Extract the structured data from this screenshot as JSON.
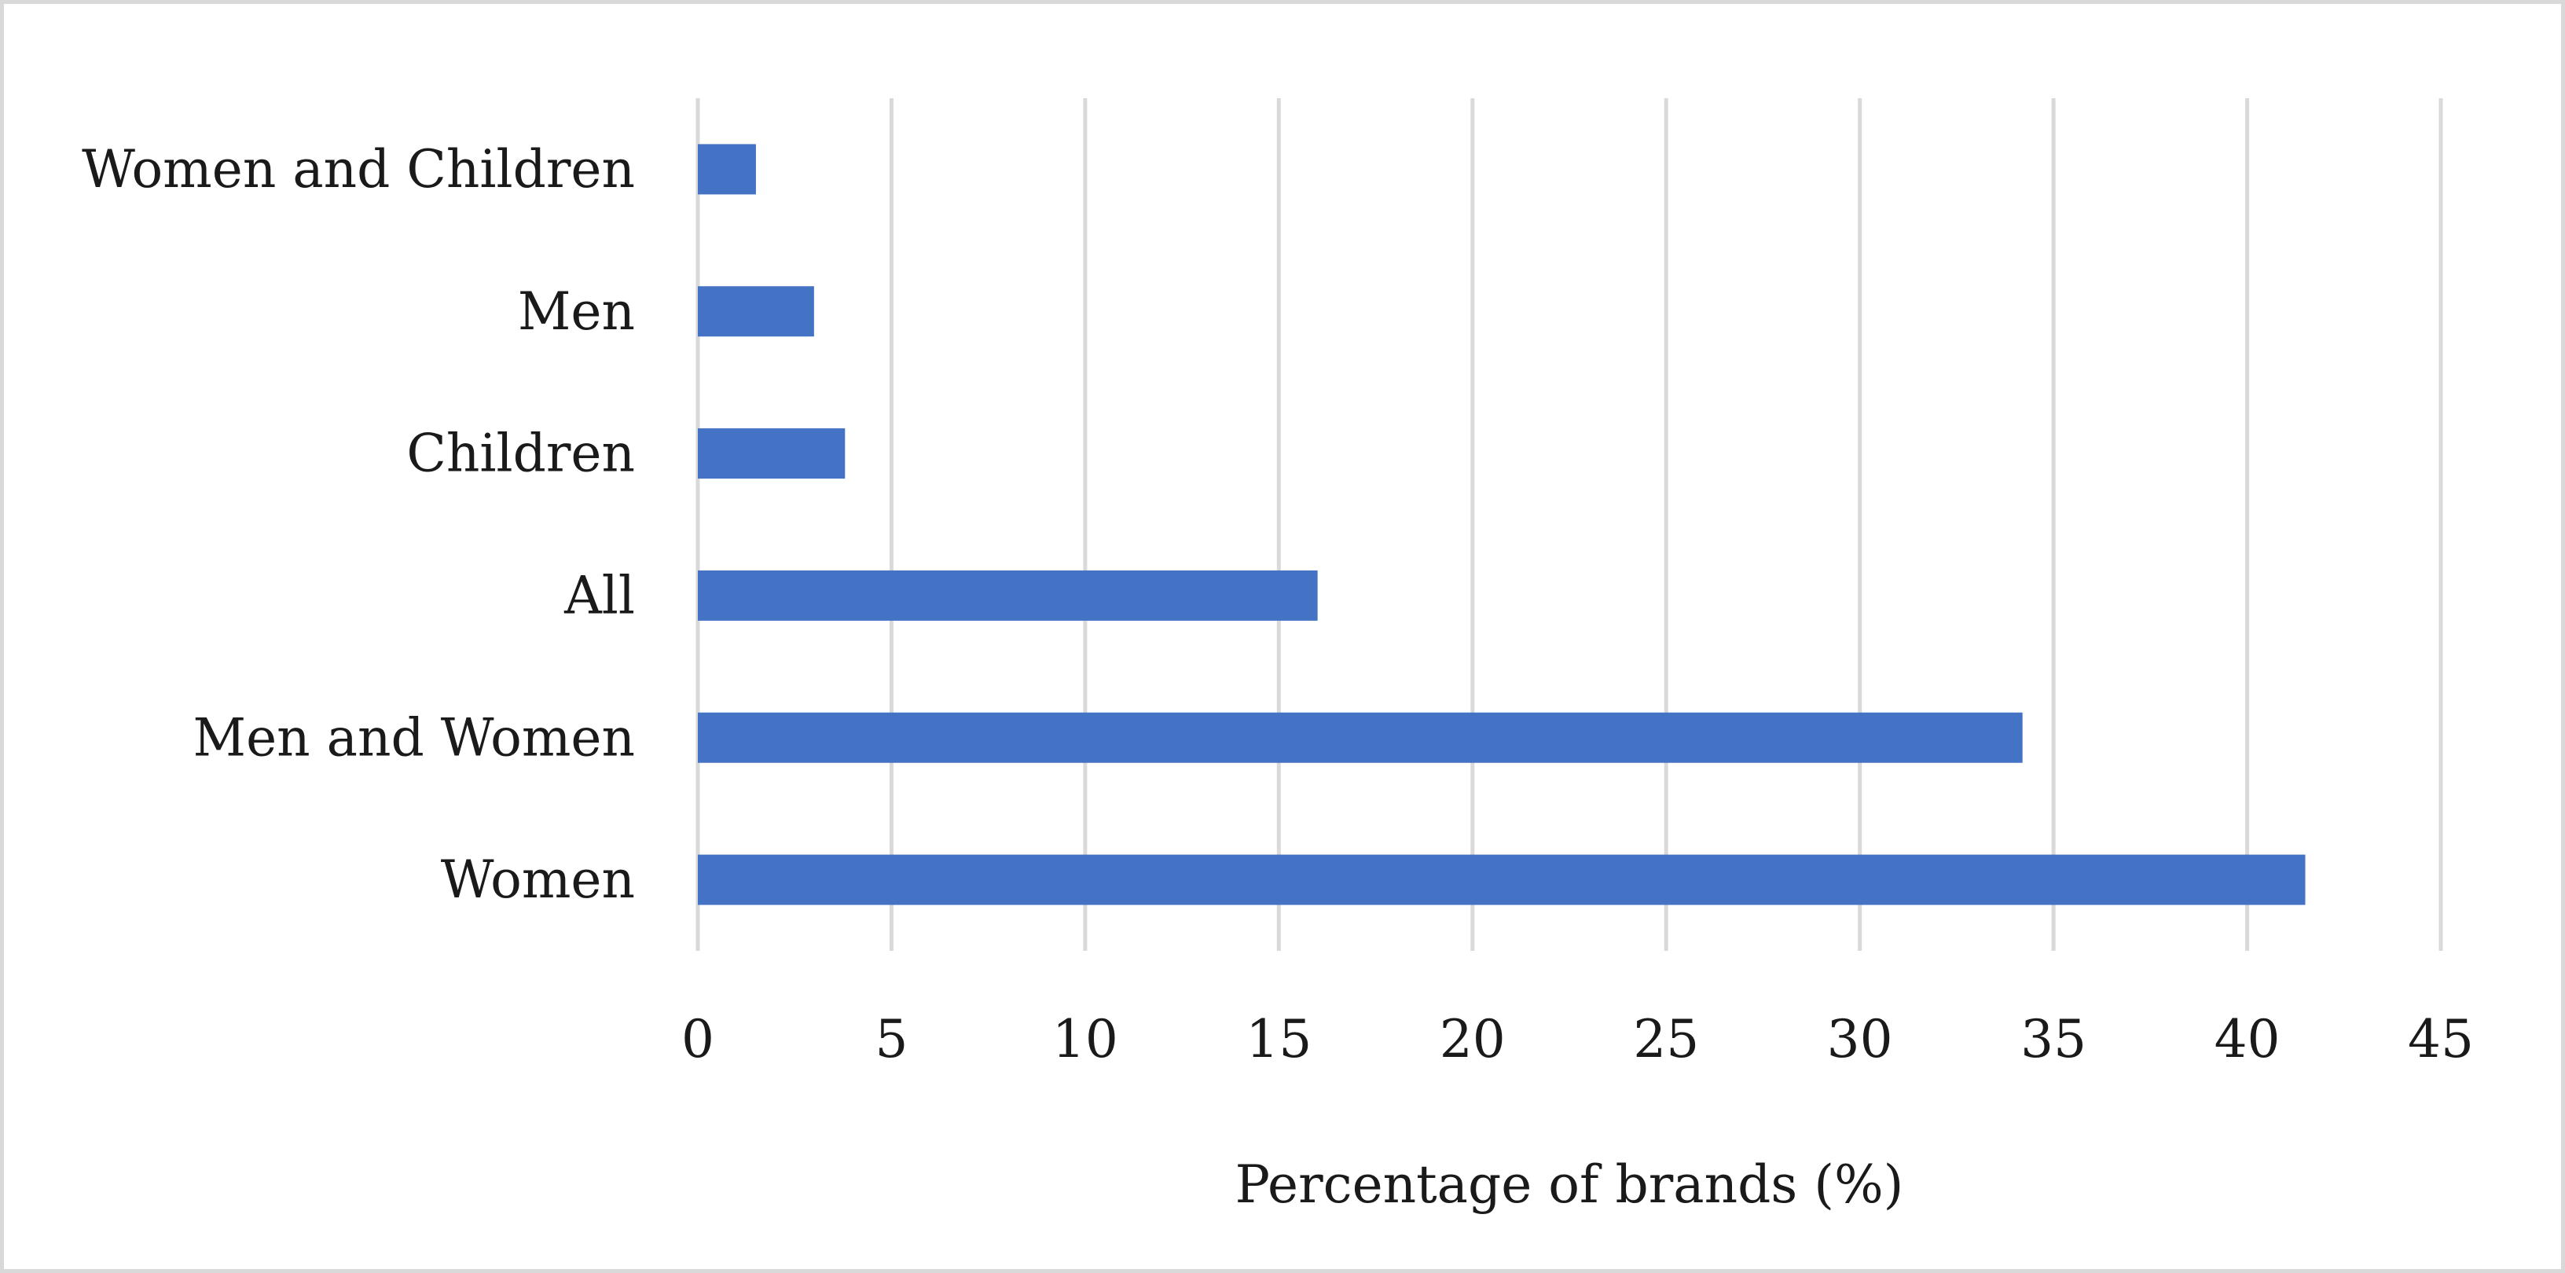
{
  "chart_data": {
    "type": "bar",
    "orientation": "horizontal",
    "title": "",
    "xlabel": "Percentage of brands (%)",
    "ylabel": "",
    "categories": [
      "Women",
      "Men and Women",
      "All",
      "Children",
      "Men",
      "Women and Children"
    ],
    "values": [
      41.5,
      34.2,
      16.0,
      3.8,
      3.0,
      1.5
    ],
    "xlim": [
      0,
      45
    ],
    "xticks": [
      0,
      5,
      10,
      15,
      20,
      25,
      30,
      35,
      40,
      45
    ],
    "grid": "vertical",
    "legend": "none",
    "bar_color": "#4472c4",
    "grid_color": "#d9d9d9"
  }
}
